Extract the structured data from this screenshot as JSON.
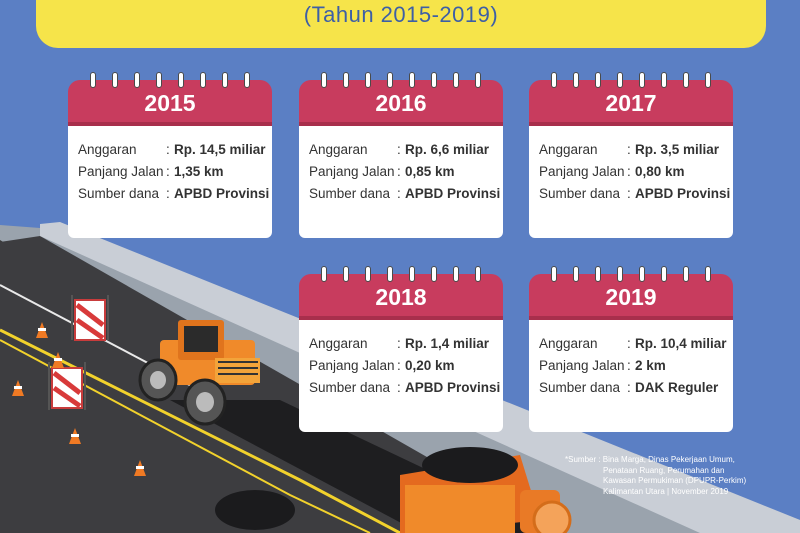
{
  "header": {
    "subtitle": "(Tahun 2015-2019)"
  },
  "labels": {
    "budget": "Anggaran",
    "length": "Panjang Jalan",
    "fund": "Sumber dana",
    "separator": ":"
  },
  "cards": [
    {
      "year": "2015",
      "budget": "Rp. 14,5 miliar",
      "length": "1,35 km",
      "fund": "APBD Provinsi"
    },
    {
      "year": "2016",
      "budget": "Rp. 6,6 miliar",
      "length": "0,85 km",
      "fund": "APBD Provinsi"
    },
    {
      "year": "2017",
      "budget": "Rp. 3,5 miliar",
      "length": "0,80 km",
      "fund": "APBD Provinsi"
    },
    {
      "year": "2018",
      "budget": "Rp. 1,4 miliar",
      "length": "0,20 km",
      "fund": "APBD Provinsi"
    },
    {
      "year": "2019",
      "budget": "Rp. 10,4 miliar",
      "length": "2 km",
      "fund": "DAK Reguler"
    }
  ],
  "source": {
    "lines": [
      "*Sumber : Bina Marga, Dinas Pekerjaan Umum,",
      "Penataan Ruang, Perumahan dan",
      "Kawasan Permukiman (DPUPR-Perkim)",
      "Kalimantan Utara | November 2019"
    ]
  },
  "colors": {
    "background": "#5b7fc4",
    "banner": "#f6e44a",
    "card_header": "#c83c5e",
    "road": "#3a3a3a",
    "truck": "#f08a2a"
  }
}
